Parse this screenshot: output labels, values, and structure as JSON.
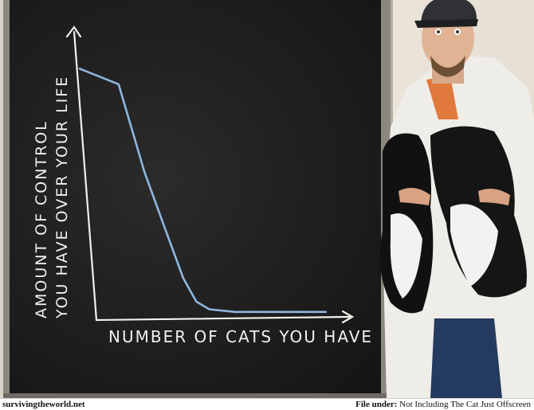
{
  "chart_data": {
    "type": "line",
    "title": "",
    "xlabel": "NUMBER OF CATS YOU HAVE",
    "ylabel_lines": [
      "AMOUNT OF CONTROL",
      "YOU HAVE OVER YOUR LIFE"
    ],
    "grid": false,
    "legend": "none",
    "xlim": [
      0,
      10
    ],
    "ylim": [
      0,
      100
    ],
    "x": [
      0.0,
      1.5,
      2.5,
      3.3,
      4.0,
      4.5,
      5.0,
      6.0,
      7.5,
      9.5
    ],
    "values": [
      95,
      89,
      55,
      33,
      14,
      5,
      2,
      1,
      1,
      1
    ],
    "line_color": "#8fb7de",
    "chalk_color": "#f1f1ec"
  },
  "footer": {
    "site": "survivingtheworld.net",
    "file_label": "File under:",
    "file_value": "Not Including The Cat Just Offscreen"
  }
}
